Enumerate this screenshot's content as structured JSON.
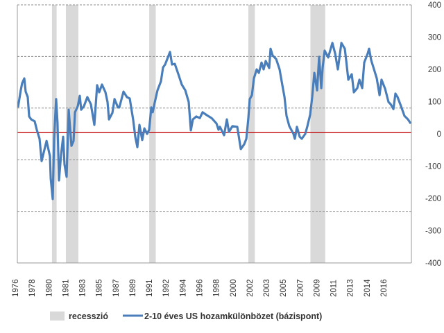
{
  "chart_data": {
    "type": "line",
    "title": "",
    "xlabel": "",
    "ylabel": "",
    "y_axis_side": "right",
    "ylim": [
      -400,
      400
    ],
    "y_ticks": [
      400,
      300,
      200,
      100,
      0,
      -100,
      -200,
      -300,
      -400
    ],
    "xlim": [
      1976.26,
      2018.8
    ],
    "x_tick_labels": [
      "1976",
      "1978",
      "1980",
      "1981",
      "1983",
      "1985",
      "1987",
      "1989",
      "1991",
      "1992",
      "1994",
      "1996",
      "1998",
      "2000",
      "2002",
      "2003",
      "2005",
      "2007",
      "2009",
      "2011",
      "2013",
      "2014",
      "2016"
    ],
    "grid": true,
    "legend_position": "bottom",
    "reference_line": {
      "value": 5,
      "color": "#c00000"
    },
    "recessions": [
      [
        1980.0,
        1980.5
      ],
      [
        1981.5,
        1982.85
      ],
      [
        1990.5,
        1991.2
      ],
      [
        2001.2,
        2001.9
      ],
      [
        2007.9,
        2009.5
      ]
    ],
    "series": [
      {
        "name": "recesszió",
        "color": "#d9d9d9",
        "kind": "band"
      },
      {
        "name": "2-10 éves US hozamkülönbözet (bázispont)",
        "color": "#4a7ebb",
        "kind": "line",
        "x": [
          1976.33,
          1976.63,
          1976.78,
          1977.01,
          1977.16,
          1977.38,
          1977.53,
          1977.76,
          1978.13,
          1978.36,
          1978.66,
          1978.88,
          1979.41,
          1979.78,
          1979.86,
          1980.08,
          1980.23,
          1980.45,
          1980.6,
          1980.75,
          1980.98,
          1981.2,
          1981.35,
          1981.58,
          1981.8,
          1982.1,
          1982.33,
          1982.48,
          1982.78,
          1983.0,
          1983.15,
          1983.45,
          1983.82,
          1984.2,
          1984.57,
          1984.87,
          1985.1,
          1985.4,
          1985.77,
          1986.0,
          1986.15,
          1986.52,
          1986.75,
          1987.12,
          1987.27,
          1987.72,
          1988.09,
          1988.39,
          1988.77,
          1988.99,
          1989.22,
          1989.44,
          1989.74,
          1989.97,
          1990.27,
          1990.49,
          1990.72,
          1990.87,
          1991.09,
          1991.39,
          1991.76,
          1991.99,
          1992.21,
          1992.74,
          1992.96,
          1993.26,
          1993.64,
          1994.01,
          1994.39,
          1994.76,
          1994.99,
          1995.21,
          1995.58,
          1995.96,
          1996.26,
          1996.71,
          1997.23,
          1997.76,
          1997.98,
          1998.13,
          1998.58,
          1998.88,
          1999.1,
          1999.48,
          2000.0,
          2000.38,
          2000.75,
          2000.98,
          2001.2,
          2001.35,
          2001.58,
          2001.8,
          2002.1,
          2002.33,
          2002.62,
          2002.85,
          2003.07,
          2003.45,
          2003.6,
          2003.82,
          2004.2,
          2004.57,
          2004.87,
          2005.1,
          2005.32,
          2005.62,
          2006.07,
          2006.22,
          2006.44,
          2006.74,
          2006.97,
          2007.34,
          2007.57,
          2007.87,
          2008.09,
          2008.32,
          2008.62,
          2008.84,
          2009.07,
          2009.22,
          2009.44,
          2009.82,
          2010.27,
          2010.57,
          2010.86,
          2011.24,
          2011.61,
          2011.76,
          2011.99,
          2012.36,
          2012.59,
          2012.96,
          2013.19,
          2013.49,
          2013.71,
          2014.08,
          2014.23,
          2014.46,
          2014.83,
          2015.06,
          2015.36,
          2015.58,
          2015.96,
          2016.33,
          2016.56,
          2016.86,
          2017.08,
          2017.31,
          2017.68,
          2018.05,
          2018.43,
          2018.73
        ],
        "y": [
          82,
          135,
          157,
          172,
          131,
          114,
          54,
          45,
          39,
          13,
          -15,
          -84,
          -22,
          -69,
          -138,
          -202,
          -15,
          108,
          34,
          -144,
          -65,
          -9,
          -95,
          -133,
          75,
          -37,
          -22,
          67,
          86,
          118,
          75,
          86,
          114,
          92,
          28,
          151,
          129,
          153,
          129,
          99,
          45,
          65,
          108,
          82,
          82,
          131,
          114,
          110,
          43,
          -9,
          -41,
          28,
          -19,
          17,
          0,
          13,
          82,
          67,
          97,
          135,
          163,
          206,
          215,
          254,
          215,
          217,
          185,
          153,
          135,
          99,
          11,
          45,
          54,
          49,
          67,
          58,
          49,
          32,
          13,
          22,
          -4,
          45,
          6,
          24,
          22,
          -47,
          -32,
          -15,
          49,
          108,
          120,
          172,
          200,
          189,
          221,
          200,
          226,
          204,
          264,
          243,
          232,
          200,
          151,
          114,
          56,
          24,
          0,
          -15,
          22,
          -9,
          -15,
          0,
          24,
          60,
          114,
          189,
          135,
          239,
          142,
          206,
          258,
          237,
          282,
          249,
          200,
          282,
          264,
          228,
          168,
          185,
          129,
          142,
          168,
          142,
          221,
          249,
          264,
          228,
          194,
          172,
          120,
          168,
          140,
          99,
          92,
          77,
          125,
          114,
          86,
          56,
          45,
          32
        ]
      }
    ]
  }
}
